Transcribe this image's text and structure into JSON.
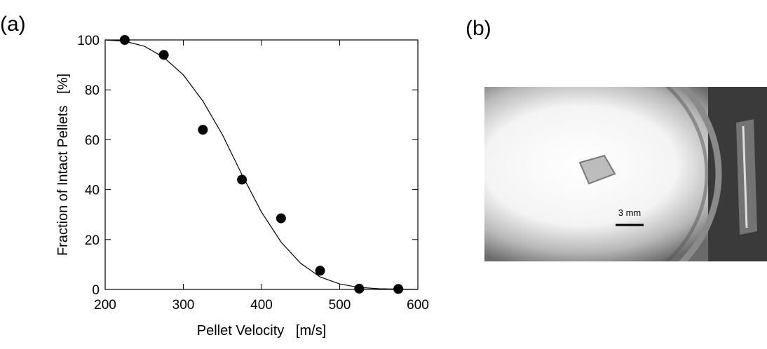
{
  "panel_a_label": "(a)",
  "panel_b_label": "(b)",
  "chart_data": {
    "type": "scatter",
    "x_label": "Pellet Velocity   [m/s]",
    "y_label": "Fraction of Intact Pellets   [%]",
    "x": [
      225,
      275,
      325,
      375,
      425,
      475,
      525,
      575
    ],
    "values": [
      100,
      94,
      64,
      44,
      28.5,
      7.5,
      0.3,
      0.2
    ],
    "color": "#000000",
    "fit": {
      "x": [
        200,
        225,
        250,
        275,
        300,
        325,
        350,
        375,
        400,
        425,
        450,
        475,
        500,
        525,
        550,
        575,
        600
      ],
      "values": [
        100,
        99.5,
        97.5,
        93,
        86,
        75.5,
        62,
        46,
        31,
        19,
        10.5,
        5,
        2.2,
        0.8,
        0.3,
        0.1,
        0
      ]
    },
    "xlim": [
      200,
      600
    ],
    "xticks": [
      200,
      300,
      400,
      500,
      600
    ],
    "ylim": [
      0,
      100
    ],
    "yticks": [
      0,
      20,
      40,
      60,
      80,
      100
    ]
  },
  "photo": {
    "scale_label": "3 mm"
  }
}
